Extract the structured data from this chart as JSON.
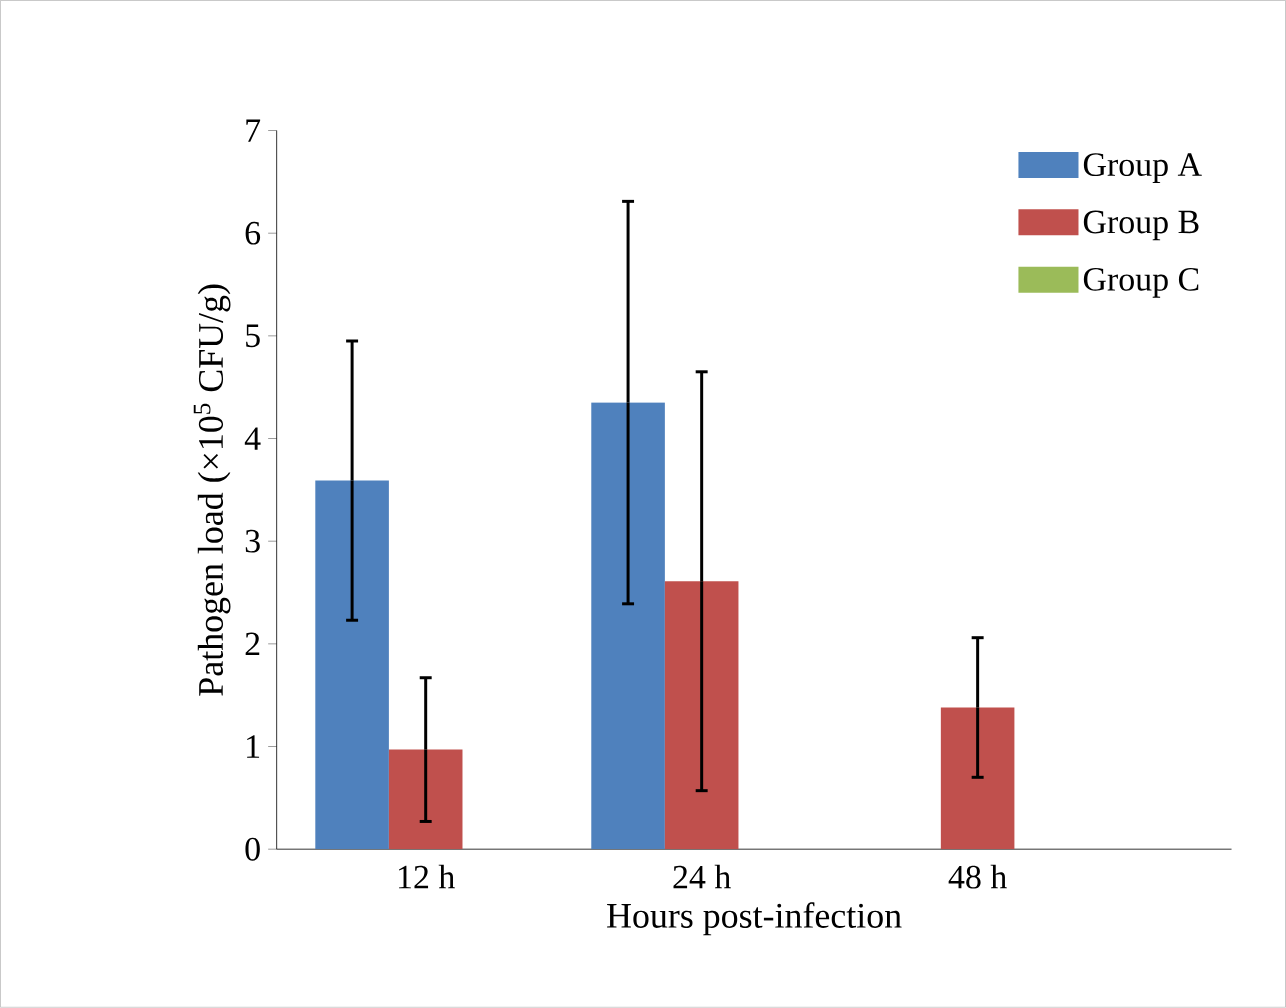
{
  "chart_data": {
    "type": "bar",
    "xlabel": "Hours post-infection",
    "ylabel": "Pathogen load (×10$^{5}$ CFU/g)",
    "categories": [
      "12 h",
      "24 h",
      "48 h"
    ],
    "series": [
      {
        "name": "Group A",
        "color": "#4f81bd",
        "values": [
          3.59,
          4.35,
          0
        ],
        "errors": [
          1.36,
          1.96,
          null
        ]
      },
      {
        "name": "Group B",
        "color": "#c0504d",
        "values": [
          0.97,
          2.61,
          1.38
        ],
        "errors": [
          0.7,
          2.04,
          0.68
        ]
      },
      {
        "name": "Group C",
        "color": "#9bbb59",
        "values": [
          0,
          0,
          0
        ],
        "errors": [
          null,
          null,
          null
        ]
      }
    ],
    "ylim": [
      0,
      7
    ],
    "yticks": [
      0,
      1,
      2,
      3,
      4,
      5,
      6,
      7
    ],
    "grid": false,
    "legend": "top right"
  }
}
